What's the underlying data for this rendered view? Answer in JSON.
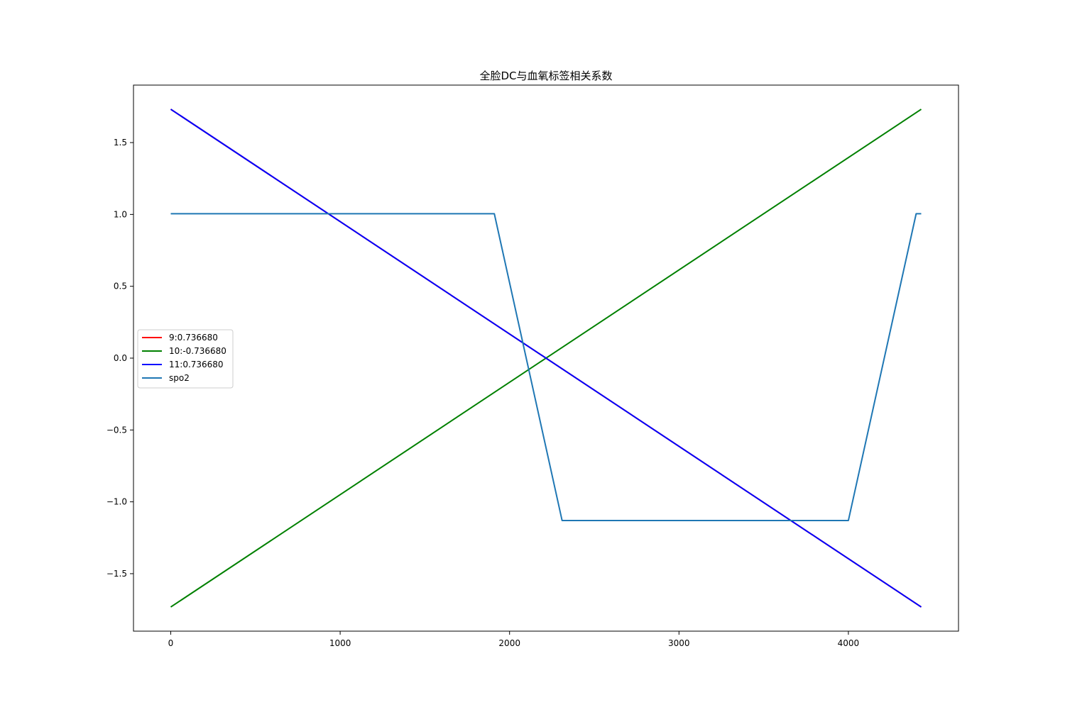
{
  "chart_data": {
    "type": "line",
    "title": "全脸DC与血氧标签相关系数",
    "xlabel": "",
    "ylabel": "",
    "xlim": [
      -220,
      4650
    ],
    "ylim": [
      -1.9,
      1.9
    ],
    "x_ticks": [
      0,
      1000,
      2000,
      3000,
      4000
    ],
    "x_tick_labels": [
      "0",
      "1000",
      "2000",
      "3000",
      "4000"
    ],
    "y_ticks": [
      1.5,
      1.0,
      0.5,
      0.0,
      -0.5,
      -1.0,
      -1.5
    ],
    "y_tick_labels": [
      "1.5",
      "1.0",
      "0.5",
      "0.0",
      "−0.5",
      "−1.0",
      "−1.5"
    ],
    "grid": false,
    "legend_position": "center-left",
    "series": [
      {
        "name": "9:0.736680",
        "color": "#ff0000",
        "x": [
          0,
          4430
        ],
        "y": [
          1.732,
          -1.732
        ]
      },
      {
        "name": "10:-0.736680",
        "color": "#008000",
        "x": [
          0,
          4430
        ],
        "y": [
          -1.732,
          1.732
        ]
      },
      {
        "name": "11:0.736680",
        "color": "#0000ff",
        "x": [
          0,
          4430
        ],
        "y": [
          1.732,
          -1.732
        ]
      },
      {
        "name": "spo2",
        "color": "#1f77b4",
        "x": [
          0,
          1910,
          2310,
          4000,
          4400,
          4430
        ],
        "y": [
          1.005,
          1.005,
          -1.13,
          -1.13,
          1.005,
          1.005
        ]
      }
    ]
  }
}
